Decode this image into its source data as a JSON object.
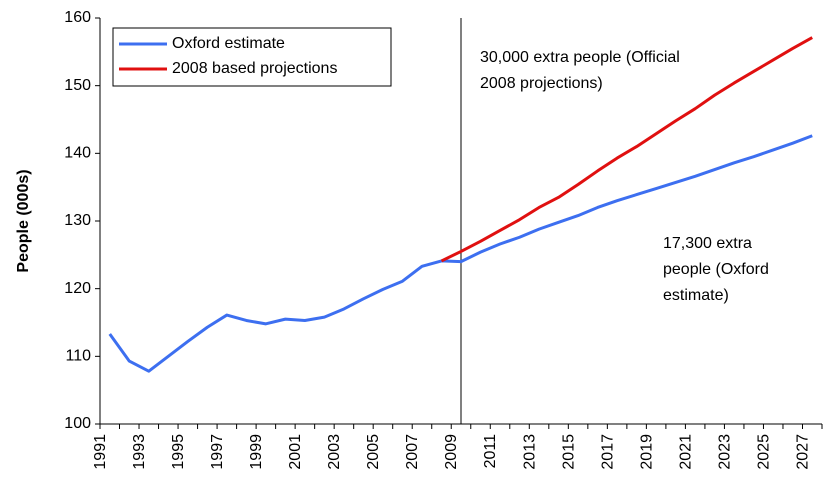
{
  "chart_data": {
    "type": "line",
    "y_label": "People (000s)",
    "categories": [
      "1991",
      null,
      "1993",
      null,
      "1995",
      null,
      "1997",
      null,
      "1999",
      null,
      "2001",
      null,
      "2003",
      null,
      "2005",
      null,
      "2007",
      null,
      "2009",
      null,
      "2011",
      null,
      "2013",
      null,
      "2015",
      null,
      "2017",
      null,
      "2019",
      null,
      "2021",
      null,
      "2023",
      null,
      "2025",
      null,
      "2027"
    ],
    "series": [
      {
        "name": "Oxford estimate",
        "color": "#3d6ff0",
        "values": [
          113.3,
          109.3,
          107.8,
          110,
          112.2,
          114.3,
          116.1,
          115.3,
          114.8,
          115.5,
          115.3,
          115.8,
          117,
          118.5,
          119.9,
          121.1,
          123.3,
          124.1,
          124.0,
          125.4,
          126.6,
          127.6,
          128.8,
          129.8,
          130.8,
          132.0,
          133.0,
          133.9,
          134.8,
          135.7,
          136.6,
          137.6,
          138.6,
          139.5,
          140.5,
          141.5,
          142.6
        ]
      },
      {
        "name": "2008 based projections",
        "color": "#e01010",
        "values": [
          null,
          null,
          null,
          null,
          null,
          null,
          null,
          null,
          null,
          null,
          null,
          null,
          null,
          null,
          null,
          null,
          null,
          124.1,
          125.5,
          127,
          128.6,
          130.2,
          132,
          133.5,
          135.4,
          137.4,
          139.3,
          141,
          142.9,
          144.8,
          146.6,
          148.6,
          150.4,
          152.1,
          153.8,
          155.5,
          157.1
        ]
      }
    ],
    "ylim": [
      100,
      160
    ],
    "yticks": [
      100,
      110,
      120,
      130,
      140,
      150,
      160
    ],
    "reference_line_at": "2009",
    "legend": "top-left",
    "annotations": [
      [
        "30,000 extra people (Official",
        "2008 projections)"
      ],
      [
        "17,300 extra",
        "people (Oxford",
        "estimate)"
      ]
    ]
  }
}
